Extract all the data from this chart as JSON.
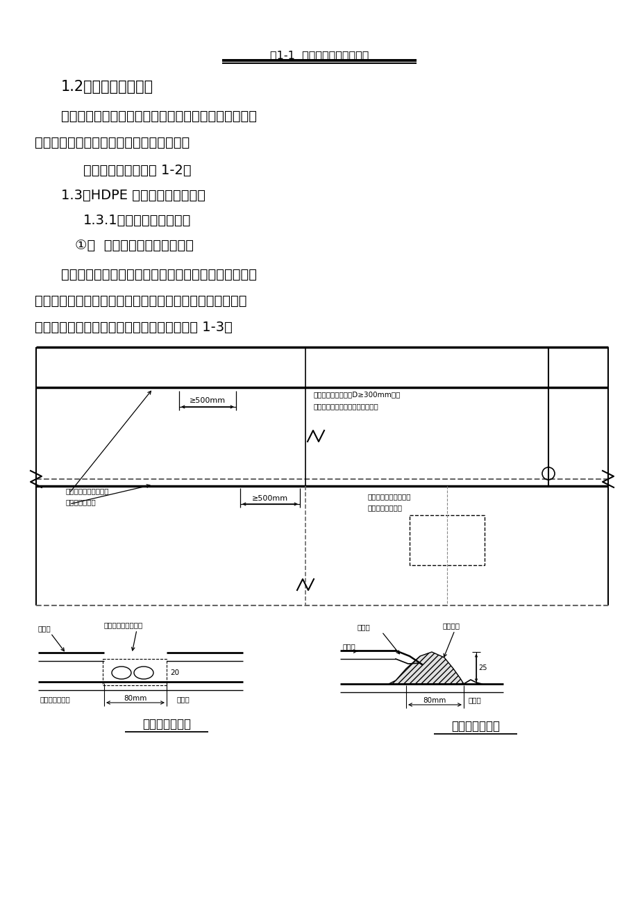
{
  "page_bg": "#ffffff",
  "title_line1": "图1-1  土工膜铺设工艺流程图",
  "section_12": "1.2、土工膜焊缝构造",
  "para1_line1": "土工膜的施工焊接主要有二种方法：双缝热合焊接和单",
  "para1_line2": "缝挤压焊接，其操作应符合相关规范要求。",
  "para2": "具体的焊缝构造见图 1-2：",
  "section_13": "1.3、HDPE 土工膜焊接技术方案",
  "section_131": "1.3.1、双缝热合焊机焊接",
  "section_circle1": "①、  双缝热合焊机焊接程序图",
  "para3_line1": "双缝热合焊机能一次完成一组双焊缝，并形成一个可充",
  "para3_line2": "气检漏的空腔，可以使焊缝的检漏方法由真空法改进成充气",
  "para3_line3": "法，极大的提高了工作效率。其焊接程序见图 1-3。",
  "diag_top_label1": "≥500mm",
  "diag_top_label2": "避不开十字接缝时加D≥300mm补丁",
  "diag_top_label3": "用挤压熔焊机焊缝（堆焊单焊缝）",
  "diag_mid_label1": "一般焊缝用模焊机焊接",
  "diag_mid_label2": "（热合双焊缝）",
  "diag_mid_label3": "≥500mm",
  "diag_mid_label4": "切取检验样件处加补丁",
  "diag_mid_label5": "用挤压熔焊机焊接",
  "bottom_left_title": "热合双焊缝构造",
  "bottom_right_title": "堆焊单焊缝构造",
  "bl_上幅膜": "上幅膜",
  "bl_熔接区": "熔接区，形成双焊缝",
  "bl_空腔": "焊缝检漏用空腔",
  "bl_下幅膜": "下幅膜",
  "bl_80mm": "80mm",
  "bl_20": "20",
  "br_熔接区": "熔接区",
  "br_堆焊": "堆焊焊缝",
  "br_上幅膜": "上幅膜",
  "br_下幅膜": "下幅膜",
  "br_80mm": "80mm",
  "text_color": "#000000",
  "line_color": "#000000"
}
